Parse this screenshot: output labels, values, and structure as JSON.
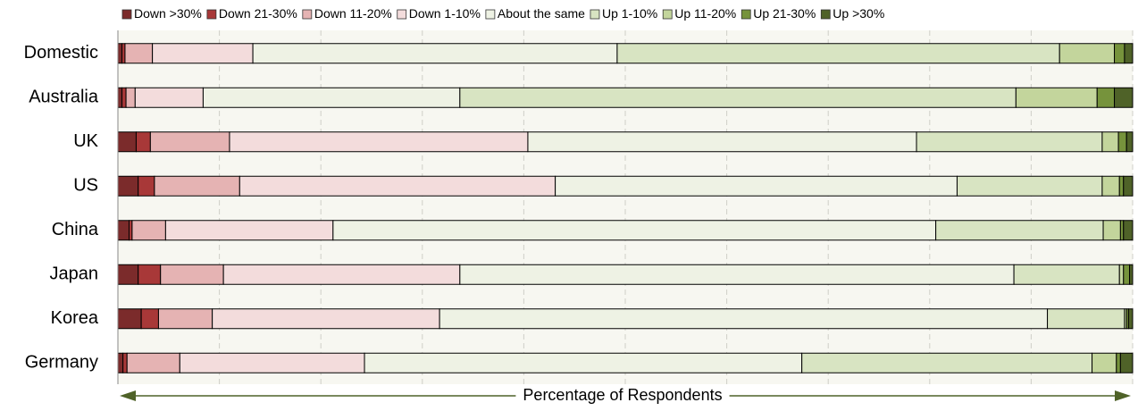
{
  "chart_data": {
    "type": "bar",
    "orientation": "horizontal",
    "stacked": true,
    "categories": [
      "Domestic",
      "Australia",
      "UK",
      "US",
      "China",
      "Japan",
      "Korea",
      "Germany"
    ],
    "series": [
      {
        "name": "Down >30%",
        "color": "#7b2b2b",
        "values": [
          0.4,
          0.4,
          1.8,
          2.0,
          1.1,
          2.0,
          2.3,
          0.5
        ]
      },
      {
        "name": "Down 21-30%",
        "color": "#a83838",
        "values": [
          0.3,
          0.4,
          1.4,
          1.6,
          0.3,
          2.2,
          1.7,
          0.4
        ]
      },
      {
        "name": "Down 11-20%",
        "color": "#e5b3b3",
        "values": [
          2.7,
          0.9,
          7.8,
          8.4,
          3.3,
          6.2,
          5.3,
          5.2
        ]
      },
      {
        "name": "Down 1-10%",
        "color": "#f3dcdc",
        "values": [
          9.9,
          6.7,
          29.4,
          31.1,
          16.5,
          23.3,
          22.4,
          18.2
        ]
      },
      {
        "name": "About the same",
        "color": "#eef2e4",
        "values": [
          35.9,
          25.3,
          38.3,
          39.6,
          59.4,
          54.6,
          59.9,
          43.1
        ]
      },
      {
        "name": "Up 1-10%",
        "color": "#d8e4c2",
        "values": [
          43.6,
          54.8,
          18.3,
          14.3,
          16.5,
          10.4,
          7.6,
          28.6
        ]
      },
      {
        "name": "Up 11-20%",
        "color": "#c3d59c",
        "values": [
          5.4,
          8.0,
          1.6,
          1.7,
          1.7,
          0.4,
          0.2,
          2.4
        ]
      },
      {
        "name": "Up 21-30%",
        "color": "#76933c",
        "values": [
          1.0,
          1.7,
          0.8,
          0.4,
          0.3,
          0.6,
          0.2,
          0.4
        ]
      },
      {
        "name": "Up >30%",
        "color": "#4f6228",
        "values": [
          0.8,
          1.8,
          0.6,
          0.9,
          0.9,
          0.3,
          0.4,
          1.2
        ]
      }
    ],
    "xlim": [
      0,
      100
    ],
    "xticks": [
      0,
      10,
      20,
      30,
      40,
      50,
      60,
      70,
      80,
      90,
      100
    ],
    "grid": true,
    "x_label": "Percentage of Respondents"
  }
}
